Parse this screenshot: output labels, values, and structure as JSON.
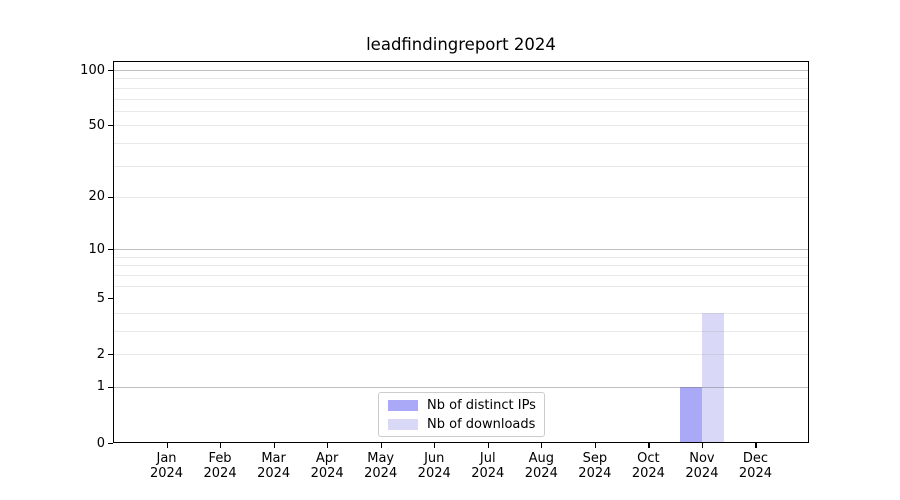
{
  "chart_data": {
    "type": "bar",
    "title": "leadfindingreport 2024",
    "categories": [
      {
        "month": "Jan",
        "year": "2024"
      },
      {
        "month": "Feb",
        "year": "2024"
      },
      {
        "month": "Mar",
        "year": "2024"
      },
      {
        "month": "Apr",
        "year": "2024"
      },
      {
        "month": "May",
        "year": "2024"
      },
      {
        "month": "Jun",
        "year": "2024"
      },
      {
        "month": "Jul",
        "year": "2024"
      },
      {
        "month": "Aug",
        "year": "2024"
      },
      {
        "month": "Sep",
        "year": "2024"
      },
      {
        "month": "Oct",
        "year": "2024"
      },
      {
        "month": "Nov",
        "year": "2024"
      },
      {
        "month": "Dec",
        "year": "2024"
      }
    ],
    "series": [
      {
        "name": "Nb of distinct IPs",
        "color": "#a9a9f7",
        "values": [
          0,
          0,
          0,
          0,
          0,
          0,
          0,
          0,
          0,
          0,
          1,
          0
        ]
      },
      {
        "name": "Nb of downloads",
        "color": "#d9d9f7",
        "values": [
          0,
          0,
          0,
          0,
          0,
          0,
          0,
          0,
          0,
          0,
          4,
          0
        ]
      }
    ],
    "xlabel": "",
    "ylabel": "",
    "y_axis": {
      "scale": "log1p",
      "min": 0,
      "max": 112,
      "tick_labels": [
        0,
        1,
        2,
        5,
        10,
        20,
        50,
        100
      ],
      "major_gridlines": [
        1,
        10,
        100
      ],
      "minor_gridlines": [
        2,
        3,
        4,
        6,
        7,
        8,
        9,
        20,
        30,
        40,
        50,
        60,
        70,
        80,
        90
      ]
    },
    "grid": true,
    "legend_position": "lower center"
  },
  "colors": {
    "major_grid": "#c3c3c3",
    "minor_grid": "#e4e4e4",
    "spine": "#000000",
    "background": "#ffffff"
  }
}
